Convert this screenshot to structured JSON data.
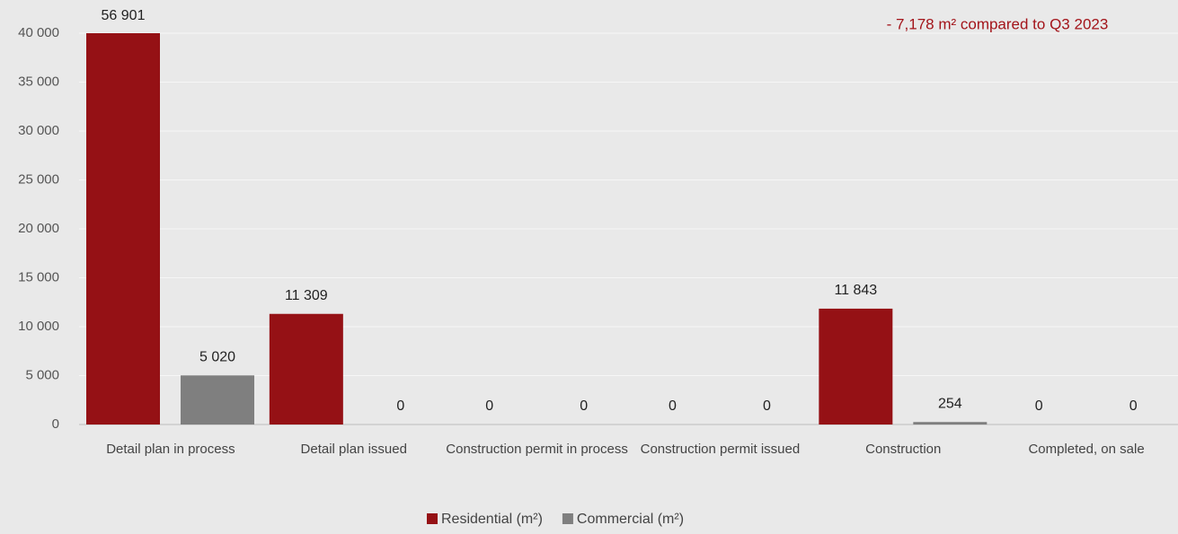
{
  "chart_data": {
    "type": "bar",
    "annotation": "- 7,178 m² compared to Q3 2023",
    "categories": [
      "Detail plan in process",
      "Detail plan issued",
      "Construction permit in process",
      "Construction permit issued",
      "Construction",
      "Completed, on sale"
    ],
    "series": [
      {
        "name": "Residential (m²)",
        "color": "#951115",
        "values": [
          56901,
          11309,
          0,
          0,
          11843,
          0
        ],
        "value_labels": [
          "56 901",
          "11 309",
          "0",
          "0",
          "11 843",
          "0"
        ]
      },
      {
        "name": "Commercial (m²)",
        "color": "#7f7f7f",
        "values": [
          5020,
          0,
          0,
          0,
          254,
          0
        ],
        "value_labels": [
          "5 020",
          "0",
          "0",
          "0",
          "254",
          "0"
        ]
      }
    ],
    "ylim": [
      0,
      40000
    ],
    "yticks": [
      0,
      {
        "value": 5000,
        "label": "5 000"
      },
      {
        "value": 10000,
        "label": "10 000"
      },
      {
        "value": 15000,
        "label": "15 000"
      },
      {
        "value": 20000,
        "label": "20 000"
      },
      {
        "value": 25000,
        "label": "25 000"
      },
      {
        "value": 30000,
        "label": "30 000"
      },
      {
        "value": 35000,
        "label": "35 000"
      },
      {
        "value": 40000,
        "label": "40 000"
      }
    ],
    "grid": true
  }
}
